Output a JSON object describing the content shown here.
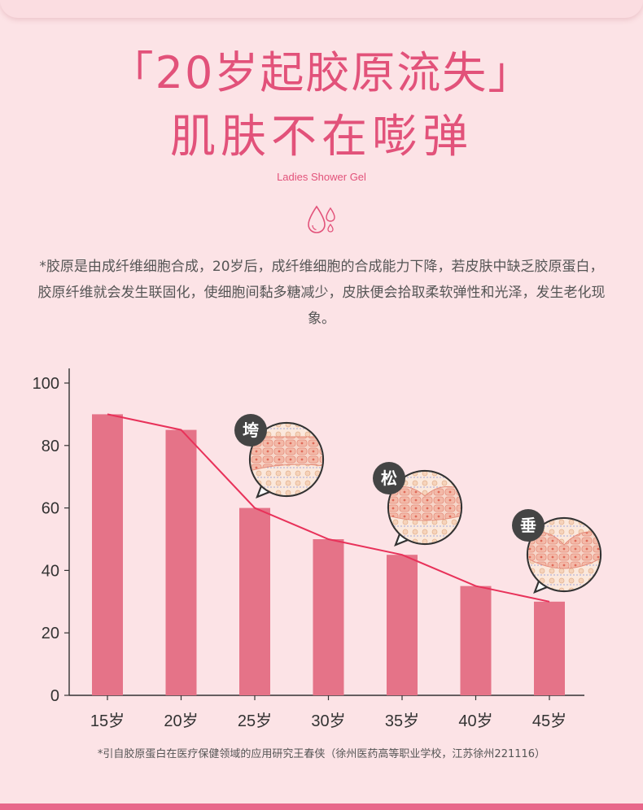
{
  "header": {
    "title_line1": "「20岁起胶原流失」",
    "title_line2": "肌肤不在嘭弹",
    "subtitle_en": "Ladies Shower Gel",
    "icon": "water-drops-icon"
  },
  "description": "*胶原是由成纤维细胞合成，20岁后，成纤维细胞的合成能力下降，若皮肤中缺乏胶原蛋白，胶原纤维就会发生联固化，使细胞间黏多糖减少，皮肤便会拾取柔软弹性和光泽，发生老化现象。",
  "chart_data": {
    "type": "bar",
    "categories": [
      "15岁",
      "20岁",
      "25岁",
      "30岁",
      "35岁",
      "40岁",
      "45岁"
    ],
    "values": [
      90,
      85,
      60,
      50,
      45,
      35,
      30
    ],
    "overlay_line": true,
    "ylim": [
      0,
      100
    ],
    "yticks": [
      0,
      20,
      40,
      60,
      80,
      100
    ],
    "grid": false,
    "annotations": [
      {
        "label": "垮",
        "category": "25岁"
      },
      {
        "label": "松",
        "category": "35岁"
      },
      {
        "label": "垂",
        "category": "45岁"
      }
    ]
  },
  "colors": {
    "background": "#fce3e6",
    "accent": "#e2527a",
    "bar": "#e57388",
    "line": "#e8325a",
    "badge": "#444444"
  },
  "footnote": "*引自胶原蛋白在医疗保健领域的应用研究王春侠（徐州医药高等职业学校，江苏徐州221116）"
}
